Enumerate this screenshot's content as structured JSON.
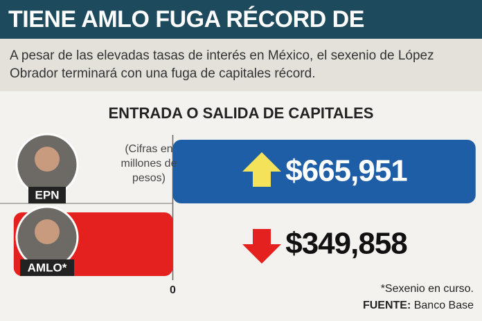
{
  "chart_data": {
    "type": "bar",
    "orientation": "horizontal",
    "title": "TIENE AMLO FUGA RÉCORD DE CAPITALES",
    "subtitle": "A pesar de las elevadas tasas de interés en México, el sexenio de López Obrador terminará con una fuga de capitales récord.",
    "chart_title": "ENTRADA O SALIDA DE CAPITALES",
    "units_note": "(Cifras en millones de pesos)",
    "categories": [
      "EPN",
      "AMLO*"
    ],
    "values": [
      665951,
      -349858
    ],
    "value_labels": [
      "$665,951",
      "$349,858"
    ],
    "colors": [
      "#1e5ea6",
      "#e4211f"
    ],
    "xlim": [
      -380000,
      680000
    ],
    "xticks": [
      0
    ],
    "footnote": "*Sexenio en curso.",
    "source": {
      "label": "FUENTE:",
      "text": "Banco Base"
    }
  }
}
